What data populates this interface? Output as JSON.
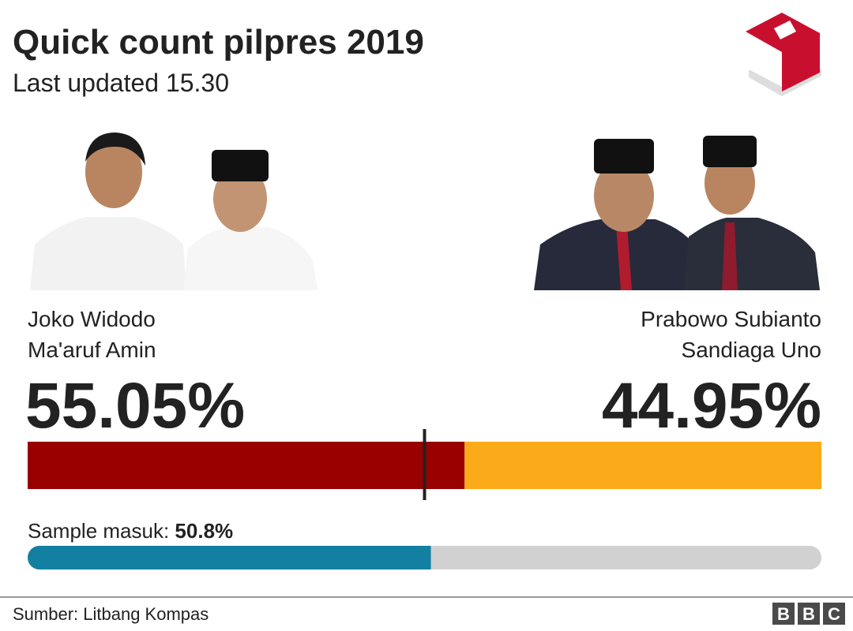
{
  "chart_data": {
    "type": "stacked-bar",
    "title": "Quick count pilpres 2019",
    "subtitle": "Last updated 15.30",
    "xlim": [
      0,
      100
    ],
    "threshold": 50,
    "series": [
      {
        "name": "Joko Widodo",
        "running_mate": "Ma'aruf Amin",
        "color": "#990000",
        "values": [
          55.05
        ],
        "value_labels": [
          "55.05%"
        ]
      },
      {
        "name": "Prabowo Subianto",
        "running_mate": "Sandiaga Uno",
        "color": "#fbaa19",
        "values": [
          44.95
        ],
        "value_labels": [
          "44.95%"
        ]
      }
    ],
    "progress": {
      "label": "Sample masuk:",
      "value": 50.8,
      "value_label": "50.8%",
      "color": "#1380a1",
      "track_color": "#d1d1d1"
    },
    "source": "Sumber: Litbang Kompas",
    "logo": [
      "B",
      "B",
      "C"
    ]
  }
}
